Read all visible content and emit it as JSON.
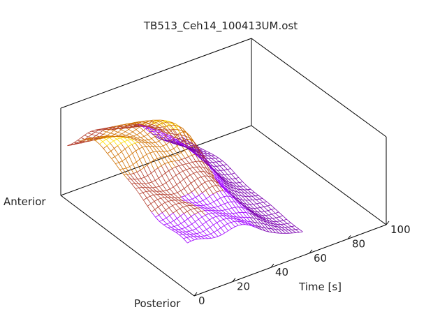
{
  "chart_data": {
    "type": "surface-3d",
    "title": "TB513_Ceh14_100413UM.ost",
    "xlabel": "Time [s]",
    "ylabel_front": "Posterior",
    "ylabel_back": "Anterior",
    "xlim": [
      0,
      100
    ],
    "x_ticks": [
      "0",
      "20",
      "40",
      "60",
      "80",
      "100"
    ],
    "x_range_data": [
      0,
      60
    ],
    "colormap": [
      "#000000",
      "#7b00b0",
      "#a000ff",
      "#b23a2a",
      "#d07000",
      "#ffdd00"
    ],
    "grid": false,
    "render": "wireframe"
  }
}
